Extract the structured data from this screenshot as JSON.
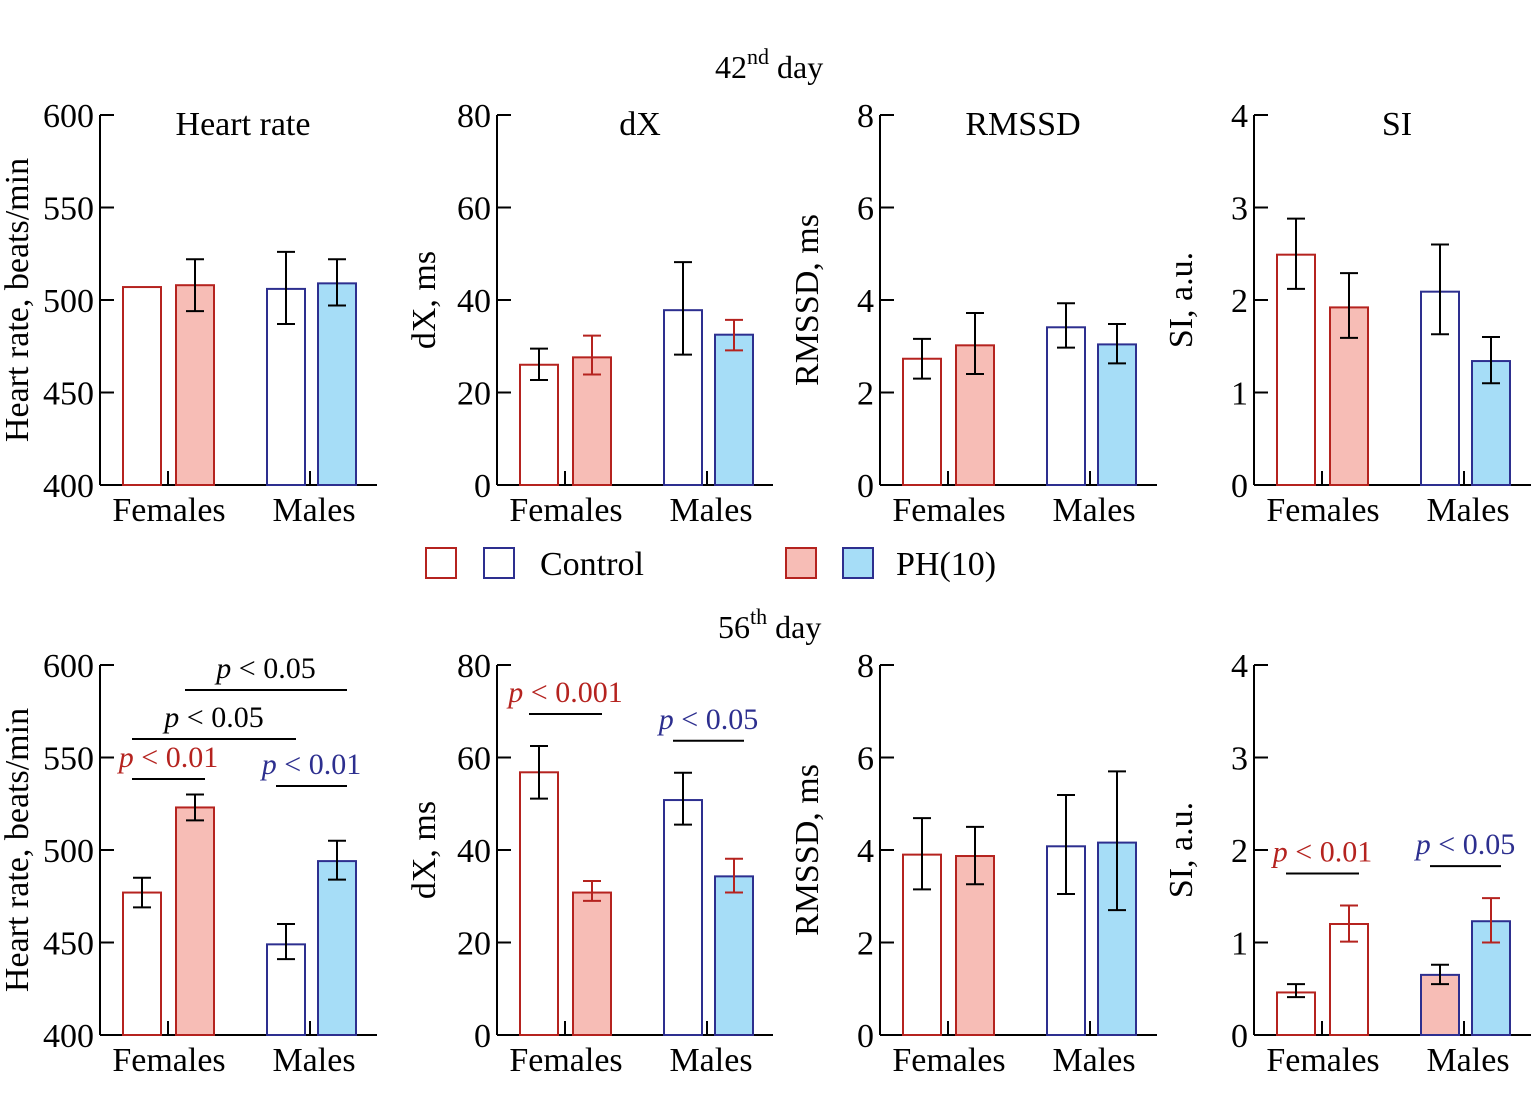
{
  "figure": {
    "day_titles": [
      {
        "number": "42",
        "suffix": "nd",
        "word": "day"
      },
      {
        "number": "56",
        "suffix": "th",
        "word": "day"
      }
    ],
    "legend": {
      "control_label": "Control",
      "ph_label": "PH(10)"
    },
    "colors": {
      "female_edge": "#b5231f",
      "male_edge": "#2d2f8f",
      "female_fill": "#f7bdb6",
      "male_fill": "#a6ddf7",
      "control_fill": "#ffffff",
      "error_black": "#000000",
      "error_red": "#b5231f",
      "p_red": "#b5231f",
      "p_blue": "#2d2f8f",
      "p_black": "#000000"
    }
  },
  "chart_data": [
    {
      "type": "bar",
      "row": "42nd day",
      "title": "Heart rate",
      "ylabel": "Heart rate, beats/min",
      "ylim": [
        400,
        600
      ],
      "yticks": [
        "400",
        "450",
        "500",
        "550",
        "600"
      ],
      "categories": [
        "Females",
        "Males"
      ],
      "series": [
        {
          "name": "Female Control",
          "group": "Females",
          "style": "female_control",
          "value": 507,
          "err": null
        },
        {
          "name": "Female PH(10)",
          "group": "Females",
          "style": "female_ph",
          "value": 508,
          "err": [
            494,
            522
          ],
          "err_color": "black"
        },
        {
          "name": "Male Control",
          "group": "Males",
          "style": "male_control",
          "value": 506,
          "err": [
            487,
            526
          ],
          "err_color": "black"
        },
        {
          "name": "Male PH(10)",
          "group": "Males",
          "style": "male_ph",
          "value": 509,
          "err": [
            497,
            522
          ],
          "err_color": "black"
        }
      ],
      "annotations": []
    },
    {
      "type": "bar",
      "row": "42nd day",
      "title": "dX",
      "ylabel": "dX, ms",
      "ylim": [
        0,
        80
      ],
      "yticks": [
        "0",
        "20",
        "40",
        "60",
        "80"
      ],
      "categories": [
        "Females",
        "Males"
      ],
      "series": [
        {
          "name": "Female Control",
          "group": "Females",
          "style": "female_control",
          "value": 26,
          "err": [
            22.7,
            29.5
          ],
          "err_color": "black"
        },
        {
          "name": "Female PH(10)",
          "group": "Females",
          "style": "female_ph",
          "value": 27.6,
          "err": [
            23.9,
            32.3
          ],
          "err_color": "red"
        },
        {
          "name": "Male Control",
          "group": "Males",
          "style": "male_control",
          "value": 37.8,
          "err": [
            28.2,
            48.2
          ],
          "err_color": "black"
        },
        {
          "name": "Male PH(10)",
          "group": "Males",
          "style": "male_ph",
          "value": 32.5,
          "err": [
            29.1,
            35.7
          ],
          "err_color": "red"
        }
      ],
      "annotations": []
    },
    {
      "type": "bar",
      "row": "42nd day",
      "title": "RMSSD",
      "ylabel": "RMSSD, ms",
      "ylim": [
        0,
        8
      ],
      "yticks": [
        "0",
        "2",
        "4",
        "6",
        "8"
      ],
      "categories": [
        "Females",
        "Males"
      ],
      "series": [
        {
          "name": "Female Control",
          "group": "Females",
          "style": "female_control",
          "value": 2.73,
          "err": [
            2.3,
            3.16
          ],
          "err_color": "black"
        },
        {
          "name": "Female PH(10)",
          "group": "Females",
          "style": "female_ph",
          "value": 3.02,
          "err": [
            2.4,
            3.72
          ],
          "err_color": "black"
        },
        {
          "name": "Male Control",
          "group": "Males",
          "style": "male_control",
          "value": 3.41,
          "err": [
            2.97,
            3.93
          ],
          "err_color": "black"
        },
        {
          "name": "Male PH(10)",
          "group": "Males",
          "style": "male_ph",
          "value": 3.04,
          "err": [
            2.63,
            3.48
          ],
          "err_color": "black"
        }
      ],
      "annotations": []
    },
    {
      "type": "bar",
      "row": "42nd day",
      "title": "SI",
      "ylabel": "SI, a.u.",
      "ylim": [
        0,
        4
      ],
      "yticks": [
        "0",
        "1",
        "2",
        "3",
        "4"
      ],
      "categories": [
        "Females",
        "Males"
      ],
      "series": [
        {
          "name": "Female Control",
          "group": "Females",
          "style": "female_control",
          "value": 2.49,
          "err": [
            2.12,
            2.88
          ],
          "err_color": "black"
        },
        {
          "name": "Female PH(10)",
          "group": "Females",
          "style": "female_ph",
          "value": 1.92,
          "err": [
            1.59,
            2.29
          ],
          "err_color": "black"
        },
        {
          "name": "Male Control",
          "group": "Males",
          "style": "male_control",
          "value": 2.09,
          "err": [
            1.63,
            2.6
          ],
          "err_color": "black"
        },
        {
          "name": "Male PH(10)",
          "group": "Males",
          "style": "male_ph",
          "value": 1.34,
          "err": [
            1.1,
            1.6
          ],
          "err_color": "black"
        }
      ],
      "annotations": []
    },
    {
      "type": "bar",
      "row": "56th day",
      "title": "",
      "ylabel": "Heart rate, beats/min",
      "ylim": [
        400,
        600
      ],
      "yticks": [
        "400",
        "450",
        "500",
        "550",
        "600"
      ],
      "categories": [
        "Females",
        "Males"
      ],
      "series": [
        {
          "name": "Female Control",
          "group": "Females",
          "style": "female_control",
          "value": 477,
          "err": [
            469,
            485
          ],
          "err_color": "black"
        },
        {
          "name": "Female PH(10)",
          "group": "Females",
          "style": "female_ph",
          "value": 523,
          "err": [
            516,
            530
          ],
          "err_color": "black"
        },
        {
          "name": "Male Control",
          "group": "Males",
          "style": "male_control",
          "value": 449,
          "err": [
            441,
            460
          ],
          "err_color": "black"
        },
        {
          "name": "Male PH(10)",
          "group": "Males",
          "style": "male_ph",
          "value": 494,
          "err": [
            484,
            505
          ],
          "err_color": "black"
        }
      ],
      "annotations": [
        {
          "text_p": "p",
          "text_rest": " < 0.05",
          "color": "black",
          "from_bar": 1,
          "to_bar": 3,
          "level": 3
        },
        {
          "text_p": "p",
          "text_rest": " < 0.05",
          "color": "black",
          "from_bar": 0,
          "to_bar": 2,
          "level": 2
        },
        {
          "text_p": "p",
          "text_rest": " < 0.01",
          "color": "red",
          "from_bar": 0,
          "to_bar": 1,
          "level": 1
        },
        {
          "text_p": "p",
          "text_rest": " < 0.01",
          "color": "blue",
          "from_bar": 2,
          "to_bar": 3,
          "level": 1
        }
      ]
    },
    {
      "type": "bar",
      "row": "56th day",
      "title": "",
      "ylabel": "dX, ms",
      "ylim": [
        0,
        80
      ],
      "yticks": [
        "0",
        "20",
        "40",
        "60",
        "80"
      ],
      "categories": [
        "Females",
        "Males"
      ],
      "series": [
        {
          "name": "Female Control",
          "group": "Females",
          "style": "female_control",
          "value": 56.8,
          "err": [
            51.1,
            62.5
          ],
          "err_color": "black"
        },
        {
          "name": "Female PH(10)",
          "group": "Females",
          "style": "female_ph",
          "value": 30.8,
          "err": [
            29,
            33.3
          ],
          "err_color": "red"
        },
        {
          "name": "Male Control",
          "group": "Males",
          "style": "male_control",
          "value": 50.8,
          "err": [
            45.5,
            56.7
          ],
          "err_color": "black"
        },
        {
          "name": "Male PH(10)",
          "group": "Males",
          "style": "male_ph",
          "value": 34.3,
          "err": [
            30.8,
            38.1
          ],
          "err_color": "red"
        }
      ],
      "annotations": [
        {
          "text_p": "p",
          "text_rest": " < 0.001",
          "color": "red",
          "from_bar": 0,
          "to_bar": 1,
          "level": 1
        },
        {
          "text_p": "p",
          "text_rest": " < 0.05",
          "color": "blue",
          "from_bar": 2,
          "to_bar": 3,
          "level": 0
        }
      ]
    },
    {
      "type": "bar",
      "row": "56th day",
      "title": "",
      "ylabel": "RMSSD, ms",
      "ylim": [
        0,
        8
      ],
      "yticks": [
        "0",
        "2",
        "4",
        "6",
        "8"
      ],
      "categories": [
        "Females",
        "Males"
      ],
      "series": [
        {
          "name": "Female Control",
          "group": "Females",
          "style": "female_control",
          "value": 3.9,
          "err": [
            3.15,
            4.69
          ],
          "err_color": "black"
        },
        {
          "name": "Female PH(10)",
          "group": "Females",
          "style": "female_ph",
          "value": 3.87,
          "err": [
            3.26,
            4.5
          ],
          "err_color": "black"
        },
        {
          "name": "Male Control",
          "group": "Males",
          "style": "male_control",
          "value": 4.08,
          "err": [
            3.05,
            5.19
          ],
          "err_color": "black"
        },
        {
          "name": "Male PH(10)",
          "group": "Males",
          "style": "male_ph",
          "value": 4.16,
          "err": [
            2.7,
            5.7
          ],
          "err_color": "black"
        }
      ],
      "annotations": []
    },
    {
      "type": "bar",
      "row": "56th day",
      "title": "",
      "ylabel": "SI, a.u.",
      "ylim": [
        0,
        4
      ],
      "yticks": [
        "0",
        "1",
        "2",
        "3",
        "4"
      ],
      "categories": [
        "Females",
        "Males"
      ],
      "series": [
        {
          "name": "Female Control",
          "group": "Females",
          "style": "female_control",
          "value": 0.46,
          "err": [
            0.41,
            0.55
          ],
          "err_color": "black"
        },
        {
          "name": "Female PH(10)",
          "group": "Females",
          "style": "female_control",
          "value": 1.2,
          "err": [
            1.01,
            1.4
          ],
          "err_color": "red"
        },
        {
          "name": "Male Control",
          "group": "Males",
          "style": "female_ph_male_edge",
          "value": 0.65,
          "err": [
            0.55,
            0.76
          ],
          "err_color": "black"
        },
        {
          "name": "Male PH(10)",
          "group": "Males",
          "style": "male_ph",
          "value": 1.23,
          "err": [
            1.0,
            1.48
          ],
          "err_color": "red"
        }
      ],
      "annotations": [
        {
          "text_p": "p",
          "text_rest": " < 0.01",
          "color": "red",
          "from_bar": 0,
          "to_bar": 1,
          "level": 1
        },
        {
          "text_p": "p",
          "text_rest": " < 0.05",
          "color": "blue",
          "from_bar": 2,
          "to_bar": 3,
          "level": 0
        }
      ]
    }
  ]
}
